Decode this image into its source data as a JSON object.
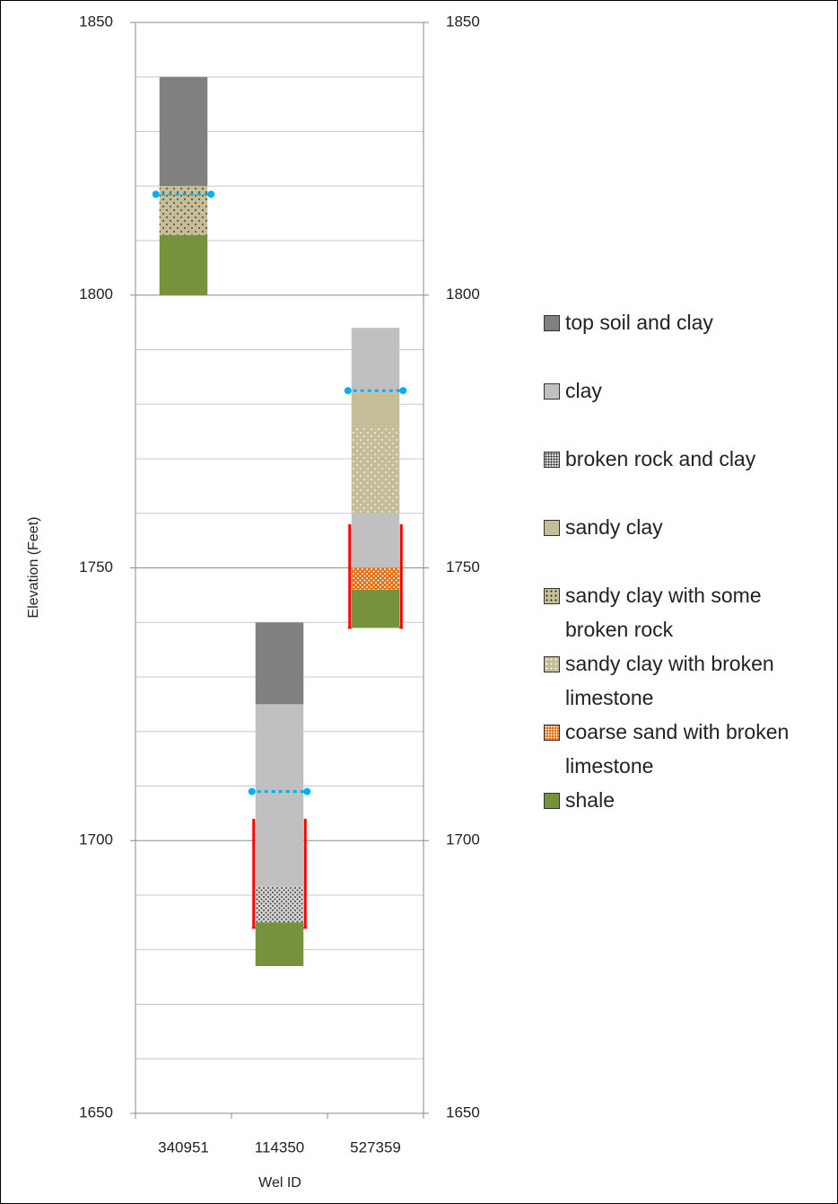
{
  "chart_data": {
    "type": "lithology-columns",
    "x_label": "Wel ID",
    "y_label": "Elevation (Feet)",
    "categories": [
      "340951",
      "114350",
      "527359"
    ],
    "ylim": [
      1650,
      1850
    ],
    "yticks": [
      1650,
      1700,
      1750,
      1800,
      1850
    ],
    "y2lim": [
      1650,
      1850
    ],
    "y2ticks": [
      1650,
      1700,
      1750,
      1800,
      1850
    ],
    "ygrid": [
      1660,
      1670,
      1680,
      1690,
      1710,
      1720,
      1730,
      1740,
      1760,
      1770,
      1780,
      1790,
      1810,
      1820,
      1830,
      1840
    ],
    "series": [
      {
        "name": "top soil and clay",
        "color": "#808080",
        "pattern": "none"
      },
      {
        "name": "clay",
        "color": "#c0c0c0",
        "pattern": "none"
      },
      {
        "name": "broken rock and clay",
        "color": "#d4d4d4",
        "pattern": "dark-dense"
      },
      {
        "name": "sandy clay",
        "color": "#c4bd97",
        "pattern": "none"
      },
      {
        "name": "sandy clay with some broken rock",
        "color": "#c4bd97",
        "pattern": "dark-sparse"
      },
      {
        "name": "sandy clay with broken limestone",
        "color": "#c4bd97",
        "pattern": "white-sparse"
      },
      {
        "name": "coarse sand with broken limestone",
        "color": "#e46c0a",
        "pattern": "white-dense"
      },
      {
        "name": "shale",
        "color": "#76923c",
        "pattern": "none"
      }
    ],
    "wells": [
      {
        "top": 1840,
        "layers": [
          {
            "series": 0,
            "thickness": 20
          },
          {
            "series": 4,
            "thickness": 9
          },
          {
            "series": 7,
            "thickness": 11
          }
        ],
        "water_level": 1818.5,
        "water_color": "#00b0f0"
      },
      {
        "top": 1740,
        "layers": [
          {
            "series": 0,
            "thickness": 15
          },
          {
            "series": 1,
            "thickness": 33.5
          },
          {
            "series": 2,
            "thickness": 6.5
          },
          {
            "series": 7,
            "thickness": 8
          }
        ],
        "water_level": 1709,
        "water_color": "#00b0f0",
        "screen": [
          1704,
          1684
        ],
        "screen_color": "#ff0000"
      },
      {
        "top": 1794,
        "layers": [
          {
            "series": 1,
            "thickness": 12
          },
          {
            "series": 3,
            "thickness": 6
          },
          {
            "series": 5,
            "thickness": 16
          },
          {
            "series": 1,
            "thickness": 10
          },
          {
            "series": 6,
            "thickness": 4
          },
          {
            "series": 7,
            "thickness": 7
          }
        ],
        "water_level": 1782.5,
        "water_color": "#00b0f0",
        "screen": [
          1758,
          1739
        ],
        "screen_color": "#ff0000"
      }
    ],
    "legend": "right"
  }
}
